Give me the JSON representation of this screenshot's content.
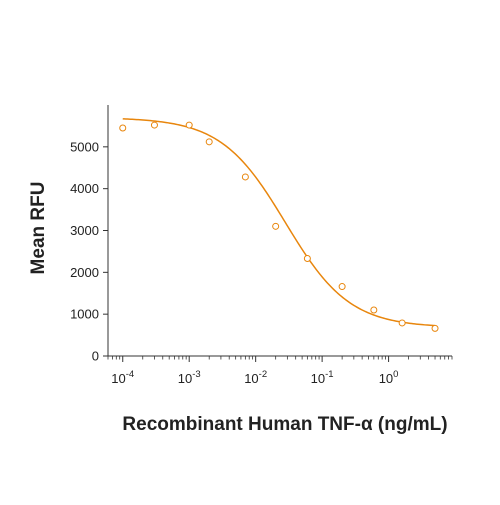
{
  "chart_data": {
    "type": "scatter",
    "title": "",
    "xlabel": "Recombinant Human TNF-α (ng/mL)",
    "ylabel": "Mean RFU",
    "x_scale": "log",
    "xlim": [
      6e-05,
      9
    ],
    "ylim": [
      0,
      6000
    ],
    "x_ticks": [
      {
        "value": 0.0001,
        "base": "10",
        "exp": "-4"
      },
      {
        "value": 0.001,
        "base": "10",
        "exp": "-3"
      },
      {
        "value": 0.01,
        "base": "10",
        "exp": "-2"
      },
      {
        "value": 0.1,
        "base": "10",
        "exp": "-1"
      },
      {
        "value": 1,
        "base": "10",
        "exp": "0"
      }
    ],
    "y_ticks": [
      0,
      1000,
      2000,
      3000,
      4000,
      5000
    ],
    "grid": false,
    "color": "#e8860d",
    "points": {
      "x": [
        0.0001,
        0.0003,
        0.001,
        0.002,
        0.007,
        0.02,
        0.06,
        0.2,
        0.6,
        1.6,
        5
      ],
      "y": [
        5450,
        5520,
        5520,
        5120,
        4280,
        3100,
        2330,
        1660,
        1100,
        790,
        660
      ]
    },
    "fit_curve": {
      "model": "4PL",
      "top": 5700,
      "bottom": 680,
      "ec50": 0.028,
      "hill": 0.9
    }
  }
}
